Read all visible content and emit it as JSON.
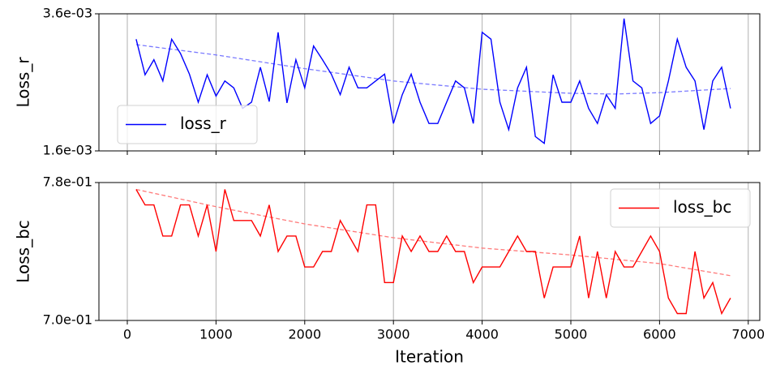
{
  "chart_data": [
    {
      "type": "line",
      "ylabel": "Loss_r",
      "legend": "lower left",
      "grid": true,
      "xlim": [
        -320,
        7130
      ],
      "xticks": [
        0,
        1000,
        2000,
        3000,
        4000,
        5000,
        6000,
        7000
      ],
      "ylim": [
        0.0016,
        0.0036
      ],
      "yticks": [
        {
          "value": 0.0016,
          "label": "1.6e-03"
        },
        {
          "value": 0.0036,
          "label": "3.6e-03"
        }
      ],
      "x": [
        100,
        200,
        300,
        400,
        500,
        600,
        700,
        800,
        900,
        1000,
        1100,
        1200,
        1300,
        1400,
        1500,
        1600,
        1700,
        1800,
        1900,
        2000,
        2100,
        2200,
        2300,
        2400,
        2500,
        2600,
        2700,
        2800,
        2900,
        3000,
        3100,
        3200,
        3300,
        3400,
        3500,
        3600,
        3700,
        3800,
        3900,
        4000,
        4100,
        4200,
        4300,
        4400,
        4500,
        4600,
        4700,
        4800,
        4900,
        5000,
        5100,
        5200,
        5300,
        5400,
        5500,
        5600,
        5700,
        5800,
        5900,
        6000,
        6100,
        6200,
        6300,
        6400,
        6500,
        6600,
        6700,
        6800
      ],
      "series": [
        {
          "name": "loss_r",
          "color": "#0000ff",
          "values": [
            0.00323,
            0.00271,
            0.00293,
            0.00262,
            0.00323,
            0.00302,
            0.00272,
            0.00231,
            0.00271,
            0.0024,
            0.00262,
            0.00252,
            0.00222,
            0.00231,
            0.00282,
            0.00232,
            0.00333,
            0.0023,
            0.00293,
            0.00252,
            0.00313,
            0.00293,
            0.00272,
            0.00242,
            0.00282,
            0.00252,
            0.00252,
            0.00262,
            0.00272,
            0.002,
            0.00242,
            0.00272,
            0.00231,
            0.002,
            0.002,
            0.00231,
            0.00262,
            0.00252,
            0.002,
            0.00333,
            0.00323,
            0.00231,
            0.00191,
            0.00252,
            0.00282,
            0.00181,
            0.00171,
            0.00271,
            0.00231,
            0.00231,
            0.00262,
            0.00222,
            0.002,
            0.00242,
            0.00222,
            0.00353,
            0.00262,
            0.00252,
            0.002,
            0.00211,
            0.00262,
            0.00323,
            0.00282,
            0.00262,
            0.00191,
            0.00262,
            0.00282,
            0.00222
          ]
        }
      ],
      "trend": {
        "color": "#7b7bff",
        "x": [
          100,
          1000,
          2000,
          3000,
          4000,
          5000,
          5500,
          6000,
          6800
        ],
        "values": [
          0.00315,
          0.003,
          0.0028,
          0.00262,
          0.0025,
          0.00244,
          0.00243,
          0.00245,
          0.00251
        ]
      }
    },
    {
      "type": "line",
      "ylabel": "Loss_bc",
      "xlabel": "Iteration",
      "legend": "upper right",
      "grid": true,
      "xlim": [
        -320,
        7130
      ],
      "xticks": [
        0,
        1000,
        2000,
        3000,
        4000,
        5000,
        6000,
        7000
      ],
      "ylim": [
        0.7,
        0.78
      ],
      "yticks": [
        {
          "value": 0.7,
          "label": "7.0e-01"
        },
        {
          "value": 0.78,
          "label": "7.8e-01"
        }
      ],
      "x": [
        100,
        200,
        300,
        400,
        500,
        600,
        700,
        800,
        900,
        1000,
        1100,
        1200,
        1300,
        1400,
        1500,
        1600,
        1700,
        1800,
        1900,
        2000,
        2100,
        2200,
        2300,
        2400,
        2500,
        2600,
        2700,
        2800,
        2900,
        3000,
        3100,
        3200,
        3300,
        3400,
        3500,
        3600,
        3700,
        3800,
        3900,
        4000,
        4100,
        4200,
        4300,
        4400,
        4500,
        4600,
        4700,
        4800,
        4900,
        5000,
        5100,
        5200,
        5300,
        5400,
        5500,
        5600,
        5700,
        5800,
        5900,
        6000,
        6100,
        6200,
        6300,
        6400,
        6500,
        6600,
        6700,
        6800
      ],
      "series": [
        {
          "name": "loss_bc",
          "color": "#ff0000",
          "values": [
            0.776,
            0.767,
            0.767,
            0.749,
            0.749,
            0.767,
            0.767,
            0.749,
            0.767,
            0.74,
            0.776,
            0.758,
            0.758,
            0.758,
            0.749,
            0.767,
            0.74,
            0.749,
            0.749,
            0.731,
            0.731,
            0.74,
            0.74,
            0.758,
            0.749,
            0.74,
            0.767,
            0.767,
            0.722,
            0.722,
            0.749,
            0.74,
            0.749,
            0.74,
            0.74,
            0.749,
            0.74,
            0.74,
            0.722,
            0.731,
            0.731,
            0.731,
            0.74,
            0.749,
            0.74,
            0.74,
            0.713,
            0.731,
            0.731,
            0.731,
            0.749,
            0.713,
            0.74,
            0.713,
            0.74,
            0.731,
            0.731,
            0.74,
            0.749,
            0.74,
            0.713,
            0.704,
            0.704,
            0.74,
            0.713,
            0.722,
            0.704,
            0.713
          ]
        }
      ],
      "trend": {
        "color": "#ff7b7b",
        "x": [
          100,
          1000,
          2000,
          3000,
          4000,
          5000,
          6000,
          6800
        ],
        "values": [
          0.776,
          0.766,
          0.756,
          0.748,
          0.742,
          0.738,
          0.733,
          0.726
        ]
      }
    }
  ]
}
